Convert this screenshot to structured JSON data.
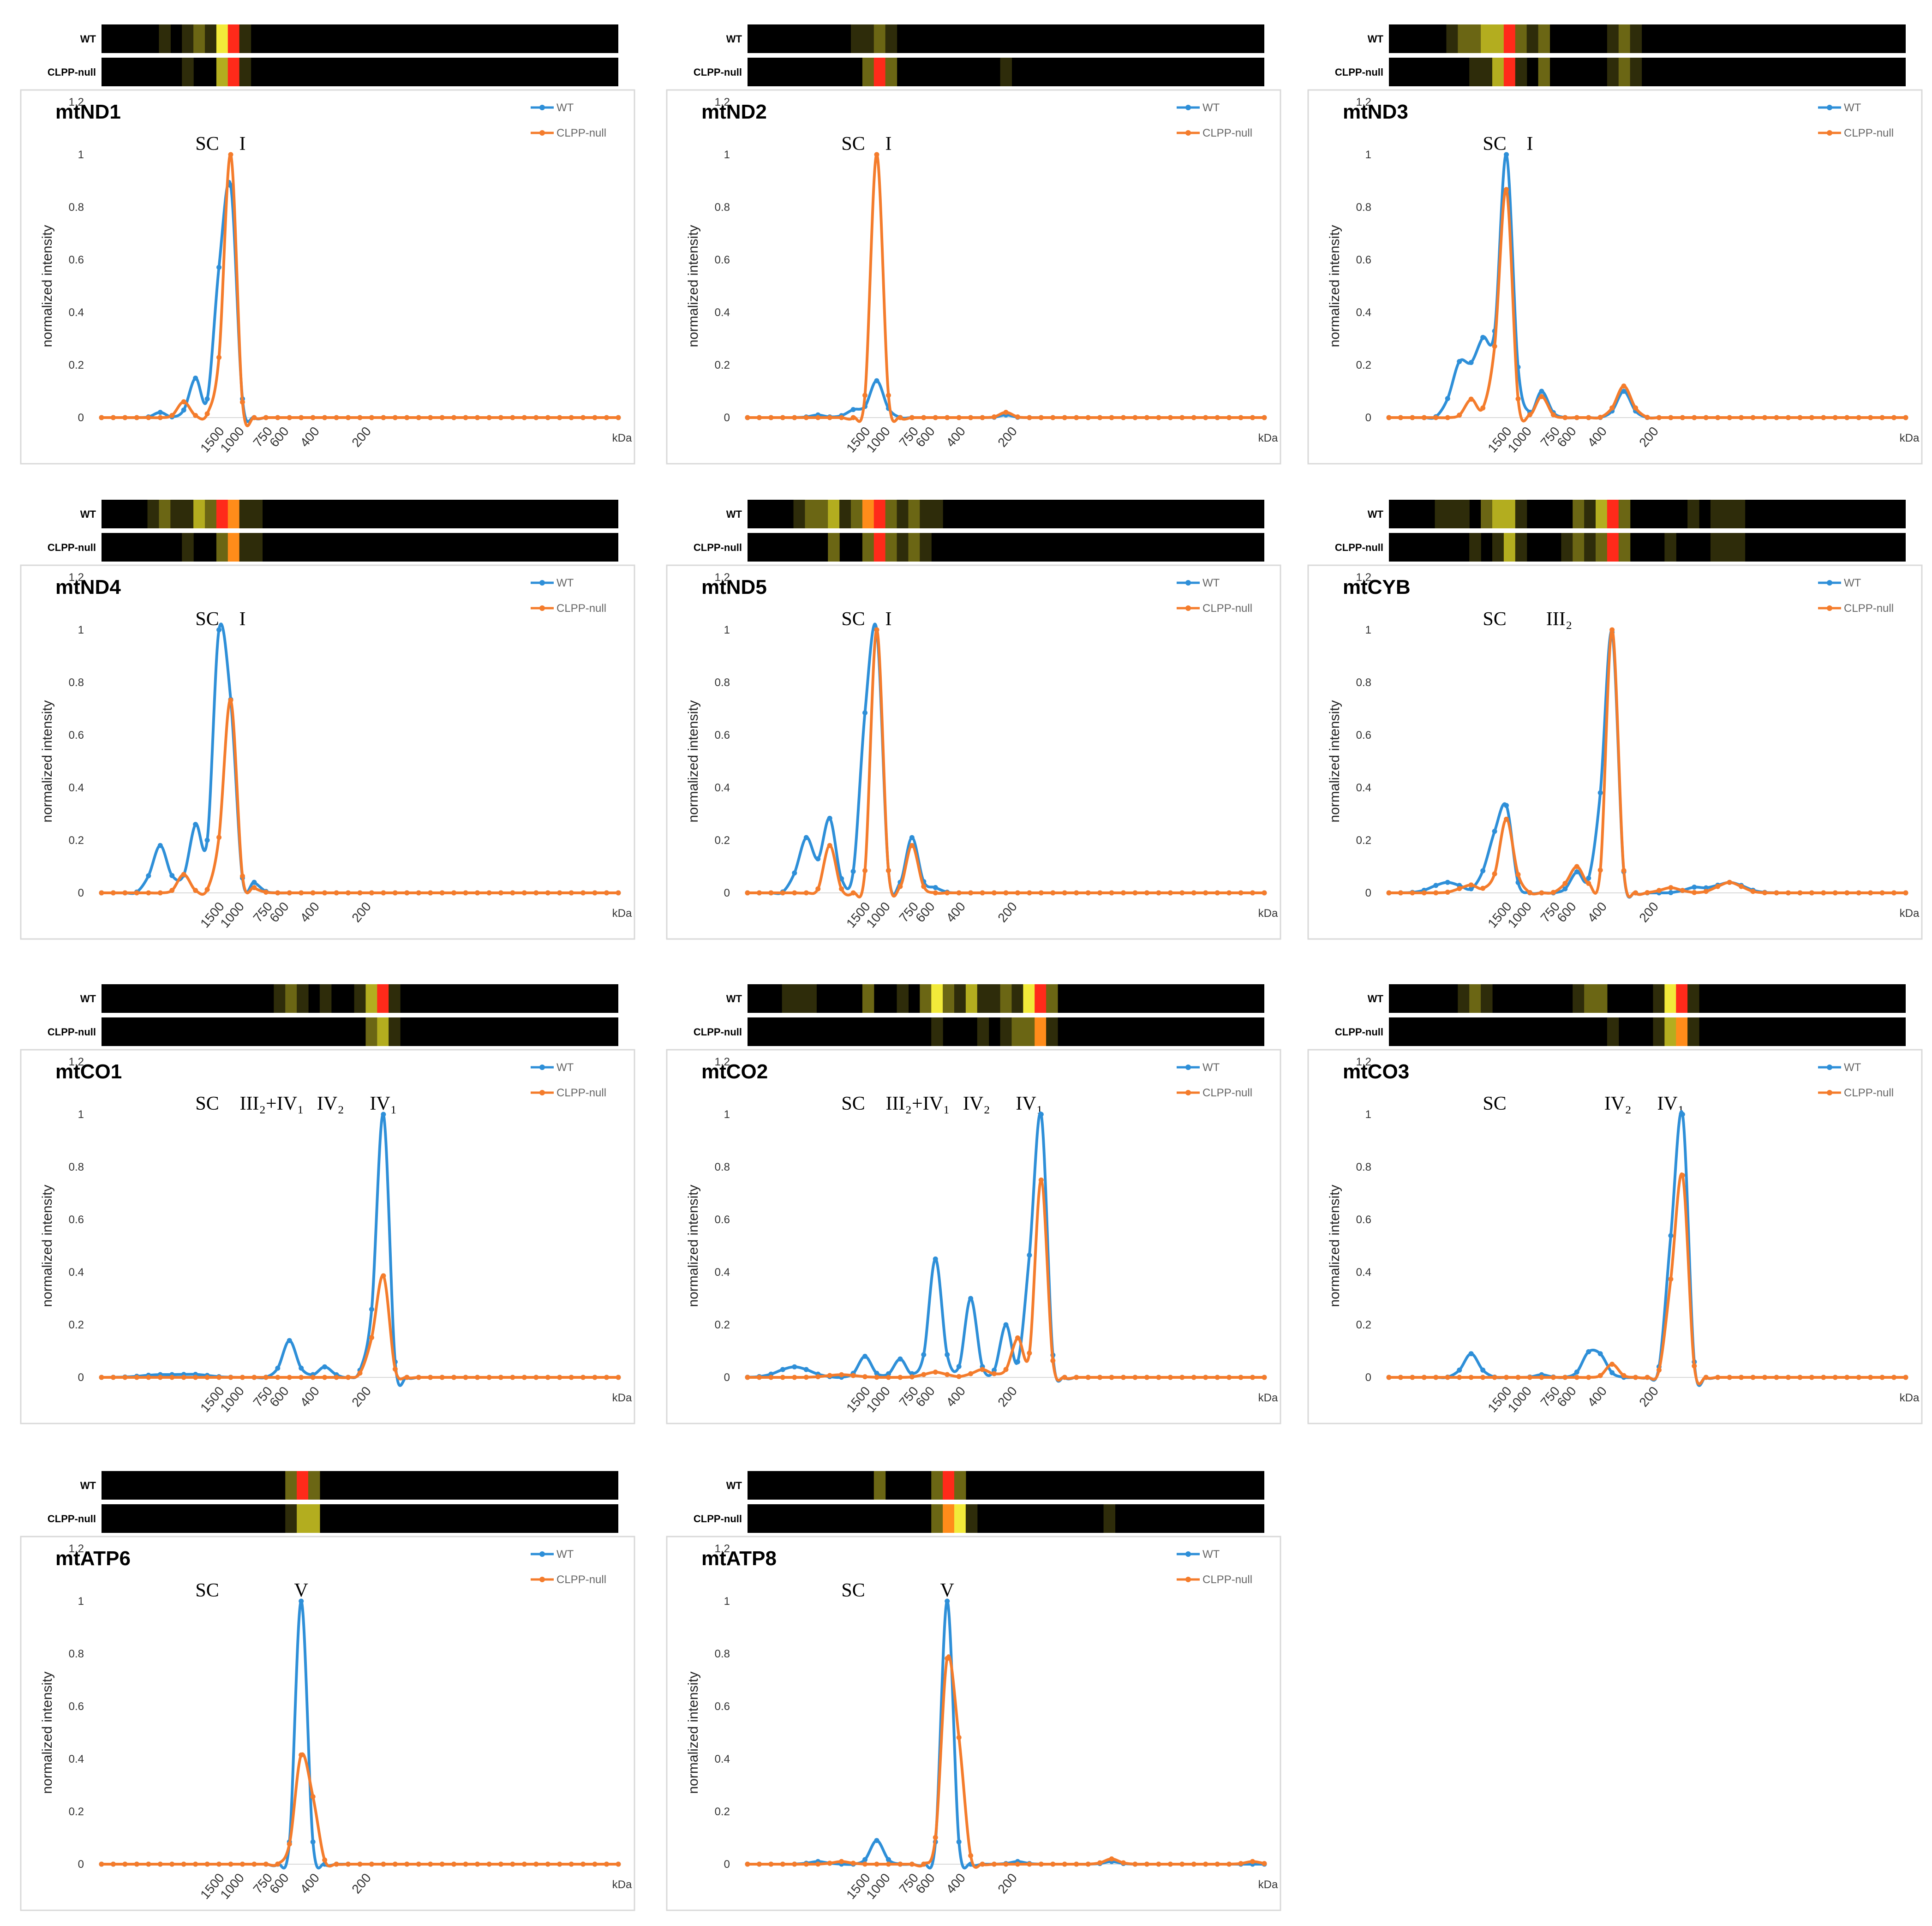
{
  "colors": {
    "WT": "#2e8fd8",
    "CLPP-null": "#f47c2c",
    "heatmap_background": "#000000"
  },
  "legend": [
    "WT",
    "CLPP-null"
  ],
  "heatmap_rows": [
    "WT",
    "CLPP-null"
  ],
  "y_axis_title": "normalized intensity",
  "y_ticks": [
    "0",
    "0.2",
    "0.4",
    "0.6",
    "0.8",
    "1",
    "1.2"
  ],
  "x_ticks": [
    "1500",
    "1000",
    "750",
    "600",
    "400",
    "200"
  ],
  "x_unit": "kDa",
  "chart_data": [
    {
      "type": "line",
      "title": "mtND1",
      "ylabel": "normalized intensity",
      "xlabel": "kDa",
      "ylim": [
        0,
        1.2
      ],
      "x_points": 45,
      "annotations": [
        "SC",
        "I"
      ],
      "series": [
        {
          "name": "WT",
          "peaks": [
            [
              5,
              0.02,
              0.5
            ],
            [
              8,
              0.15,
              0.55
            ],
            [
              10,
              0.5,
              0.45
            ],
            [
              11,
              0.84,
              0.45
            ]
          ]
        },
        {
          "name": "CLPP-null",
          "peaks": [
            [
              7,
              0.06,
              0.5
            ],
            [
              10,
              0.17,
              0.45
            ],
            [
              11,
              1.0,
              0.42
            ]
          ]
        }
      ]
    },
    {
      "type": "line",
      "title": "mtND2",
      "ylabel": "normalized intensity",
      "xlabel": "kDa",
      "ylim": [
        0,
        1.2
      ],
      "x_points": 45,
      "annotations": [
        "SC",
        "I"
      ],
      "series": [
        {
          "name": "WT",
          "peaks": [
            [
              6,
              0.01,
              0.6
            ],
            [
              9,
              0.03,
              0.6
            ],
            [
              11,
              0.14,
              0.6
            ],
            [
              22,
              0.01,
              0.5
            ]
          ]
        },
        {
          "name": "CLPP-null",
          "peaks": [
            [
              11,
              1.0,
              0.45
            ],
            [
              22,
              0.02,
              0.5
            ]
          ]
        }
      ]
    },
    {
      "type": "line",
      "title": "mtND3",
      "ylabel": "normalized intensity",
      "xlabel": "kDa",
      "ylim": [
        0,
        1.2
      ],
      "x_points": 45,
      "annotations": [
        "SC",
        "I"
      ],
      "series": [
        {
          "name": "WT",
          "peaks": [
            [
              6,
              0.2,
              0.7
            ],
            [
              8,
              0.3,
              0.8
            ],
            [
              10,
              1.0,
              0.55
            ],
            [
              13,
              0.1,
              0.55
            ],
            [
              20,
              0.1,
              0.6
            ]
          ]
        },
        {
          "name": "CLPP-null",
          "peaks": [
            [
              7,
              0.07,
              0.5
            ],
            [
              9,
              0.2,
              0.5
            ],
            [
              10,
              0.84,
              0.45
            ],
            [
              13,
              0.08,
              0.5
            ],
            [
              20,
              0.12,
              0.65
            ]
          ]
        }
      ]
    },
    {
      "type": "line",
      "title": "mtND4",
      "ylabel": "normalized intensity",
      "xlabel": "kDa",
      "ylim": [
        0,
        1.2
      ],
      "x_points": 45,
      "annotations": [
        "SC",
        "I"
      ],
      "series": [
        {
          "name": "WT",
          "peaks": [
            [
              5,
              0.18,
              0.7
            ],
            [
              8,
              0.26,
              0.6
            ],
            [
              10,
              1.0,
              0.5
            ],
            [
              11,
              0.6,
              0.45
            ],
            [
              13,
              0.04,
              0.5
            ]
          ]
        },
        {
          "name": "CLPP-null",
          "peaks": [
            [
              7,
              0.07,
              0.5
            ],
            [
              10,
              0.15,
              0.45
            ],
            [
              11,
              0.72,
              0.45
            ],
            [
              13,
              0.02,
              0.5
            ]
          ]
        }
      ]
    },
    {
      "type": "line",
      "title": "mtND5",
      "ylabel": "normalized intensity",
      "xlabel": "kDa",
      "ylim": [
        0,
        1.2
      ],
      "x_points": 45,
      "annotations": [
        "SC",
        "I"
      ],
      "series": [
        {
          "name": "WT",
          "peaks": [
            [
              5,
              0.21,
              0.7
            ],
            [
              7,
              0.28,
              0.55
            ],
            [
              10,
              0.6,
              0.5
            ],
            [
              11,
              1.0,
              0.45
            ],
            [
              14,
              0.21,
              0.55
            ],
            [
              16,
              0.02,
              0.5
            ]
          ]
        },
        {
          "name": "CLPP-null",
          "peaks": [
            [
              7,
              0.18,
              0.45
            ],
            [
              11,
              1.0,
              0.45
            ],
            [
              14,
              0.18,
              0.5
            ]
          ]
        }
      ]
    },
    {
      "type": "line",
      "title": "mtCYB",
      "ylabel": "normalized intensity",
      "xlabel": "kDa",
      "ylim": [
        0,
        1.2
      ],
      "x_points": 45,
      "annotations": [
        "SC",
        "III₂"
      ],
      "series": [
        {
          "name": "WT",
          "peaks": [
            [
              5,
              0.04,
              1.2
            ],
            [
              9,
              0.2,
              0.75
            ],
            [
              10,
              0.25,
              0.5
            ],
            [
              16,
              0.08,
              0.55
            ],
            [
              18,
              0.3,
              0.5
            ],
            [
              19,
              0.95,
              0.45
            ],
            [
              26,
              0.02,
              0.8
            ],
            [
              29,
              0.04,
              1.2
            ]
          ]
        },
        {
          "name": "CLPP-null",
          "peaks": [
            [
              7,
              0.03,
              0.9
            ],
            [
              10,
              0.28,
              0.6
            ],
            [
              16,
              0.1,
              0.7
            ],
            [
              19,
              1.0,
              0.45
            ],
            [
              24,
              0.02,
              0.8
            ],
            [
              29,
              0.04,
              1.0
            ]
          ]
        }
      ]
    },
    {
      "type": "line",
      "title": "mtCO1",
      "ylabel": "normalized intensity",
      "xlabel": "kDa",
      "ylim": [
        0,
        1.2
      ],
      "x_points": 45,
      "annotations": [
        "SC",
        "III₂+IV₁",
        "IV₂",
        "IV₁"
      ],
      "series": [
        {
          "name": "WT",
          "peaks": [
            [
              5,
              0.01,
              1.5
            ],
            [
              8,
              0.01,
              1.2
            ],
            [
              16,
              0.14,
              0.6
            ],
            [
              19,
              0.04,
              0.6
            ],
            [
              23,
              0.2,
              0.5
            ],
            [
              24,
              1.0,
              0.42
            ]
          ]
        },
        {
          "name": "CLPP-null",
          "peaks": [
            [
              23,
              0.12,
              0.5
            ],
            [
              24,
              0.37,
              0.45
            ]
          ]
        }
      ]
    },
    {
      "type": "line",
      "title": "mtCO2",
      "ylabel": "normalized intensity",
      "xlabel": "kDa",
      "ylim": [
        0,
        1.2
      ],
      "x_points": 45,
      "annotations": [
        "SC",
        "III₂+IV₁",
        "IV₂",
        "IV₁"
      ],
      "series": [
        {
          "name": "WT",
          "peaks": [
            [
              4,
              0.04,
              1.3
            ],
            [
              10,
              0.08,
              0.55
            ],
            [
              13,
              0.07,
              0.55
            ],
            [
              16,
              0.45,
              0.55
            ],
            [
              19,
              0.3,
              0.5
            ],
            [
              22,
              0.2,
              0.5
            ],
            [
              24,
              0.38,
              0.45
            ],
            [
              25,
              1.0,
              0.45
            ]
          ]
        },
        {
          "name": "CLPP-null",
          "peaks": [
            [
              8,
              0.01,
              1.2
            ],
            [
              16,
              0.02,
              0.9
            ],
            [
              20,
              0.03,
              0.8
            ],
            [
              23,
              0.15,
              0.55
            ],
            [
              25,
              0.75,
              0.45
            ]
          ]
        }
      ]
    },
    {
      "type": "line",
      "title": "mtCO3",
      "ylabel": "normalized intensity",
      "xlabel": "kDa",
      "ylim": [
        0,
        1.2
      ],
      "x_points": 45,
      "annotations": [
        "SC",
        "IV₂",
        "IV₁"
      ],
      "series": [
        {
          "name": "WT",
          "peaks": [
            [
              7,
              0.09,
              0.65
            ],
            [
              13,
              0.01,
              0.5
            ],
            [
              17,
              0.08,
              0.6
            ],
            [
              18,
              0.07,
              0.6
            ],
            [
              24,
              0.48,
              0.45
            ],
            [
              25,
              1.0,
              0.42
            ]
          ]
        },
        {
          "name": "CLPP-null",
          "peaks": [
            [
              19,
              0.05,
              0.5
            ],
            [
              24,
              0.33,
              0.45
            ],
            [
              25,
              0.74,
              0.42
            ]
          ]
        }
      ]
    },
    {
      "type": "line",
      "title": "mtATP6",
      "ylabel": "normalized intensity",
      "xlabel": "kDa",
      "ylim": [
        0,
        1.2
      ],
      "x_points": 45,
      "annotations": [
        "SC",
        "V"
      ],
      "series": [
        {
          "name": "WT",
          "peaks": [
            [
              17,
              1.0,
              0.45
            ]
          ]
        },
        {
          "name": "CLPP-null",
          "peaks": [
            [
              17,
              0.4,
              0.55
            ],
            [
              18,
              0.18,
              0.45
            ]
          ]
        }
      ]
    },
    {
      "type": "line",
      "title": "mtATP8",
      "ylabel": "normalized intensity",
      "xlabel": "kDa",
      "ylim": [
        0,
        1.2
      ],
      "x_points": 45,
      "annotations": [
        "SC",
        "V"
      ],
      "series": [
        {
          "name": "WT",
          "peaks": [
            [
              6,
              0.01,
              0.7
            ],
            [
              11,
              0.09,
              0.55
            ],
            [
              17,
              1.0,
              0.45
            ],
            [
              23,
              0.01,
              0.6
            ],
            [
              31,
              0.01,
              0.6
            ]
          ]
        },
        {
          "name": "CLPP-null",
          "peaks": [
            [
              8,
              0.01,
              0.7
            ],
            [
              17,
              0.75,
              0.5
            ],
            [
              18,
              0.38,
              0.45
            ],
            [
              31,
              0.02,
              0.6
            ],
            [
              43,
              0.01,
              0.6
            ]
          ]
        }
      ]
    }
  ]
}
